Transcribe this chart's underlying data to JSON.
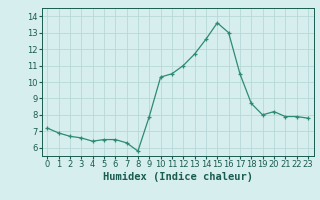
{
  "x": [
    0,
    1,
    2,
    3,
    4,
    5,
    6,
    7,
    8,
    9,
    10,
    11,
    12,
    13,
    14,
    15,
    16,
    17,
    18,
    19,
    20,
    21,
    22,
    23
  ],
  "y": [
    7.2,
    6.9,
    6.7,
    6.6,
    6.4,
    6.5,
    6.5,
    6.3,
    5.8,
    7.9,
    10.3,
    10.5,
    11.0,
    11.7,
    12.6,
    13.6,
    13.0,
    10.5,
    8.7,
    8.0,
    8.2,
    7.9,
    7.9,
    7.8
  ],
  "line_color": "#2e8b73",
  "marker": "+",
  "marker_size": 3,
  "background_color": "#d6eeee",
  "grid_color": "#b8d8d8",
  "xlabel": "Humidex (Indice chaleur)",
  "xlim": [
    -0.5,
    23.5
  ],
  "ylim": [
    5.5,
    14.5
  ],
  "yticks": [
    6,
    7,
    8,
    9,
    10,
    11,
    12,
    13,
    14
  ],
  "xticks": [
    0,
    1,
    2,
    3,
    4,
    5,
    6,
    7,
    8,
    9,
    10,
    11,
    12,
    13,
    14,
    15,
    16,
    17,
    18,
    19,
    20,
    21,
    22,
    23
  ],
  "tick_fontsize": 6,
  "xlabel_fontsize": 7.5,
  "label_color": "#1a5c50"
}
